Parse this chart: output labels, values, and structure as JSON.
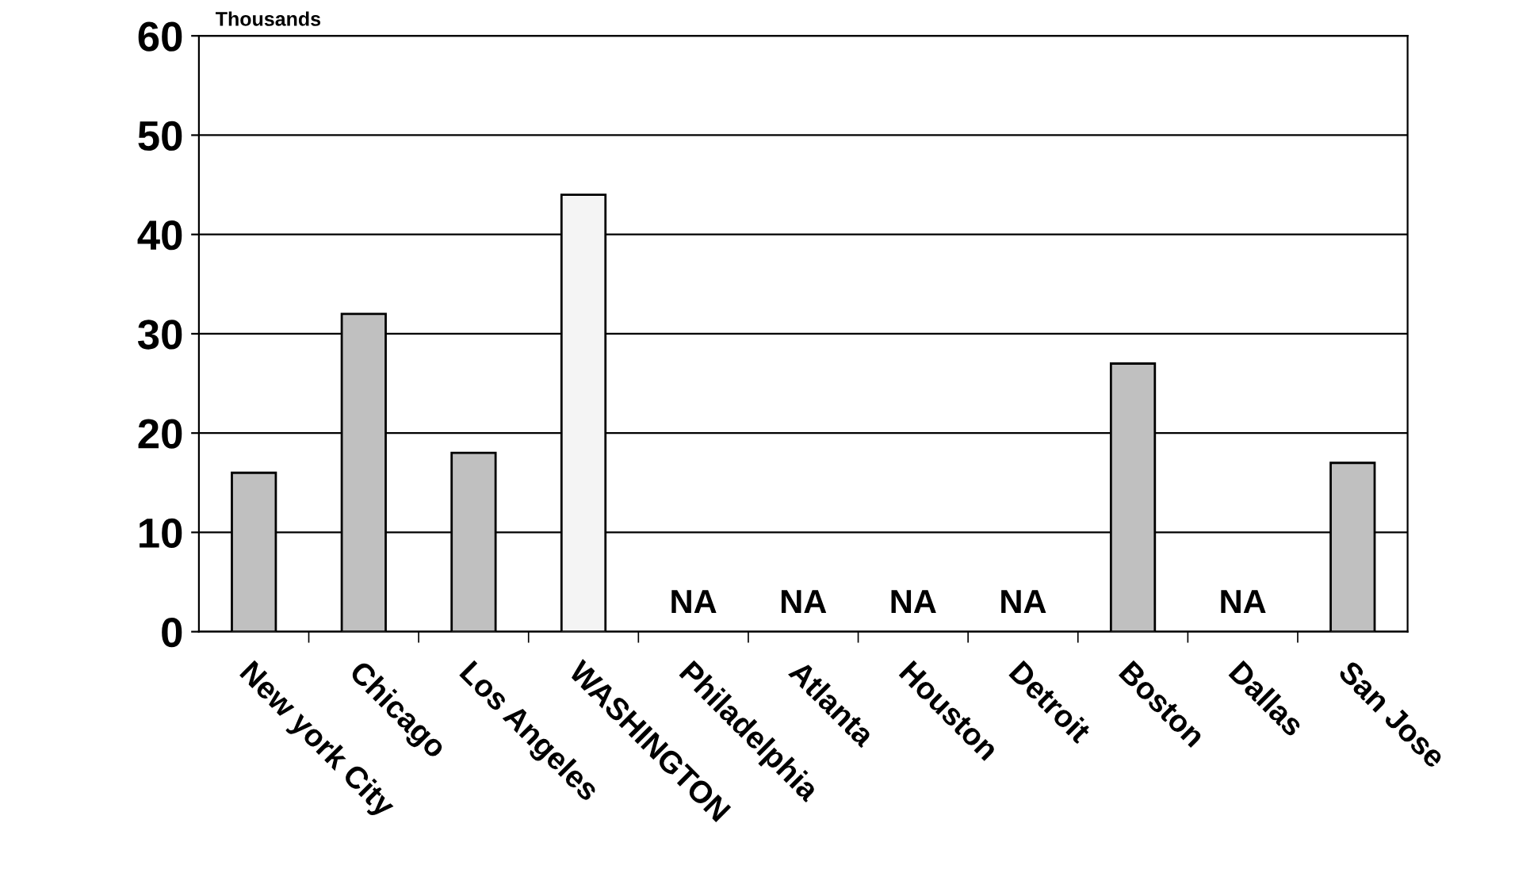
{
  "chart_data": {
    "type": "bar",
    "ylabel": "Thousands",
    "categories": [
      "New york City",
      "Chicago",
      "Los Angeles",
      "WASHINGTON",
      "Philadelphia",
      "Atlanta",
      "Houston",
      "Detroit",
      "Boston",
      "Dallas",
      "San Jose"
    ],
    "values": [
      16,
      32,
      18,
      44,
      null,
      null,
      null,
      null,
      27,
      null,
      17
    ],
    "value_labels": [
      null,
      null,
      null,
      null,
      "NA",
      "NA",
      "NA",
      "NA",
      null,
      "NA",
      null
    ],
    "colors": [
      "#c0c0c0",
      "#c0c0c0",
      "#c0c0c0",
      "#f4f4f4",
      "#c0c0c0",
      "#c0c0c0",
      "#c0c0c0",
      "#c0c0c0",
      "#c0c0c0",
      "#c0c0c0",
      "#c0c0c0"
    ],
    "ylim": [
      0,
      60
    ],
    "yticks": [
      0,
      10,
      20,
      30,
      40,
      50,
      60
    ],
    "grid": "y",
    "legend": false
  }
}
